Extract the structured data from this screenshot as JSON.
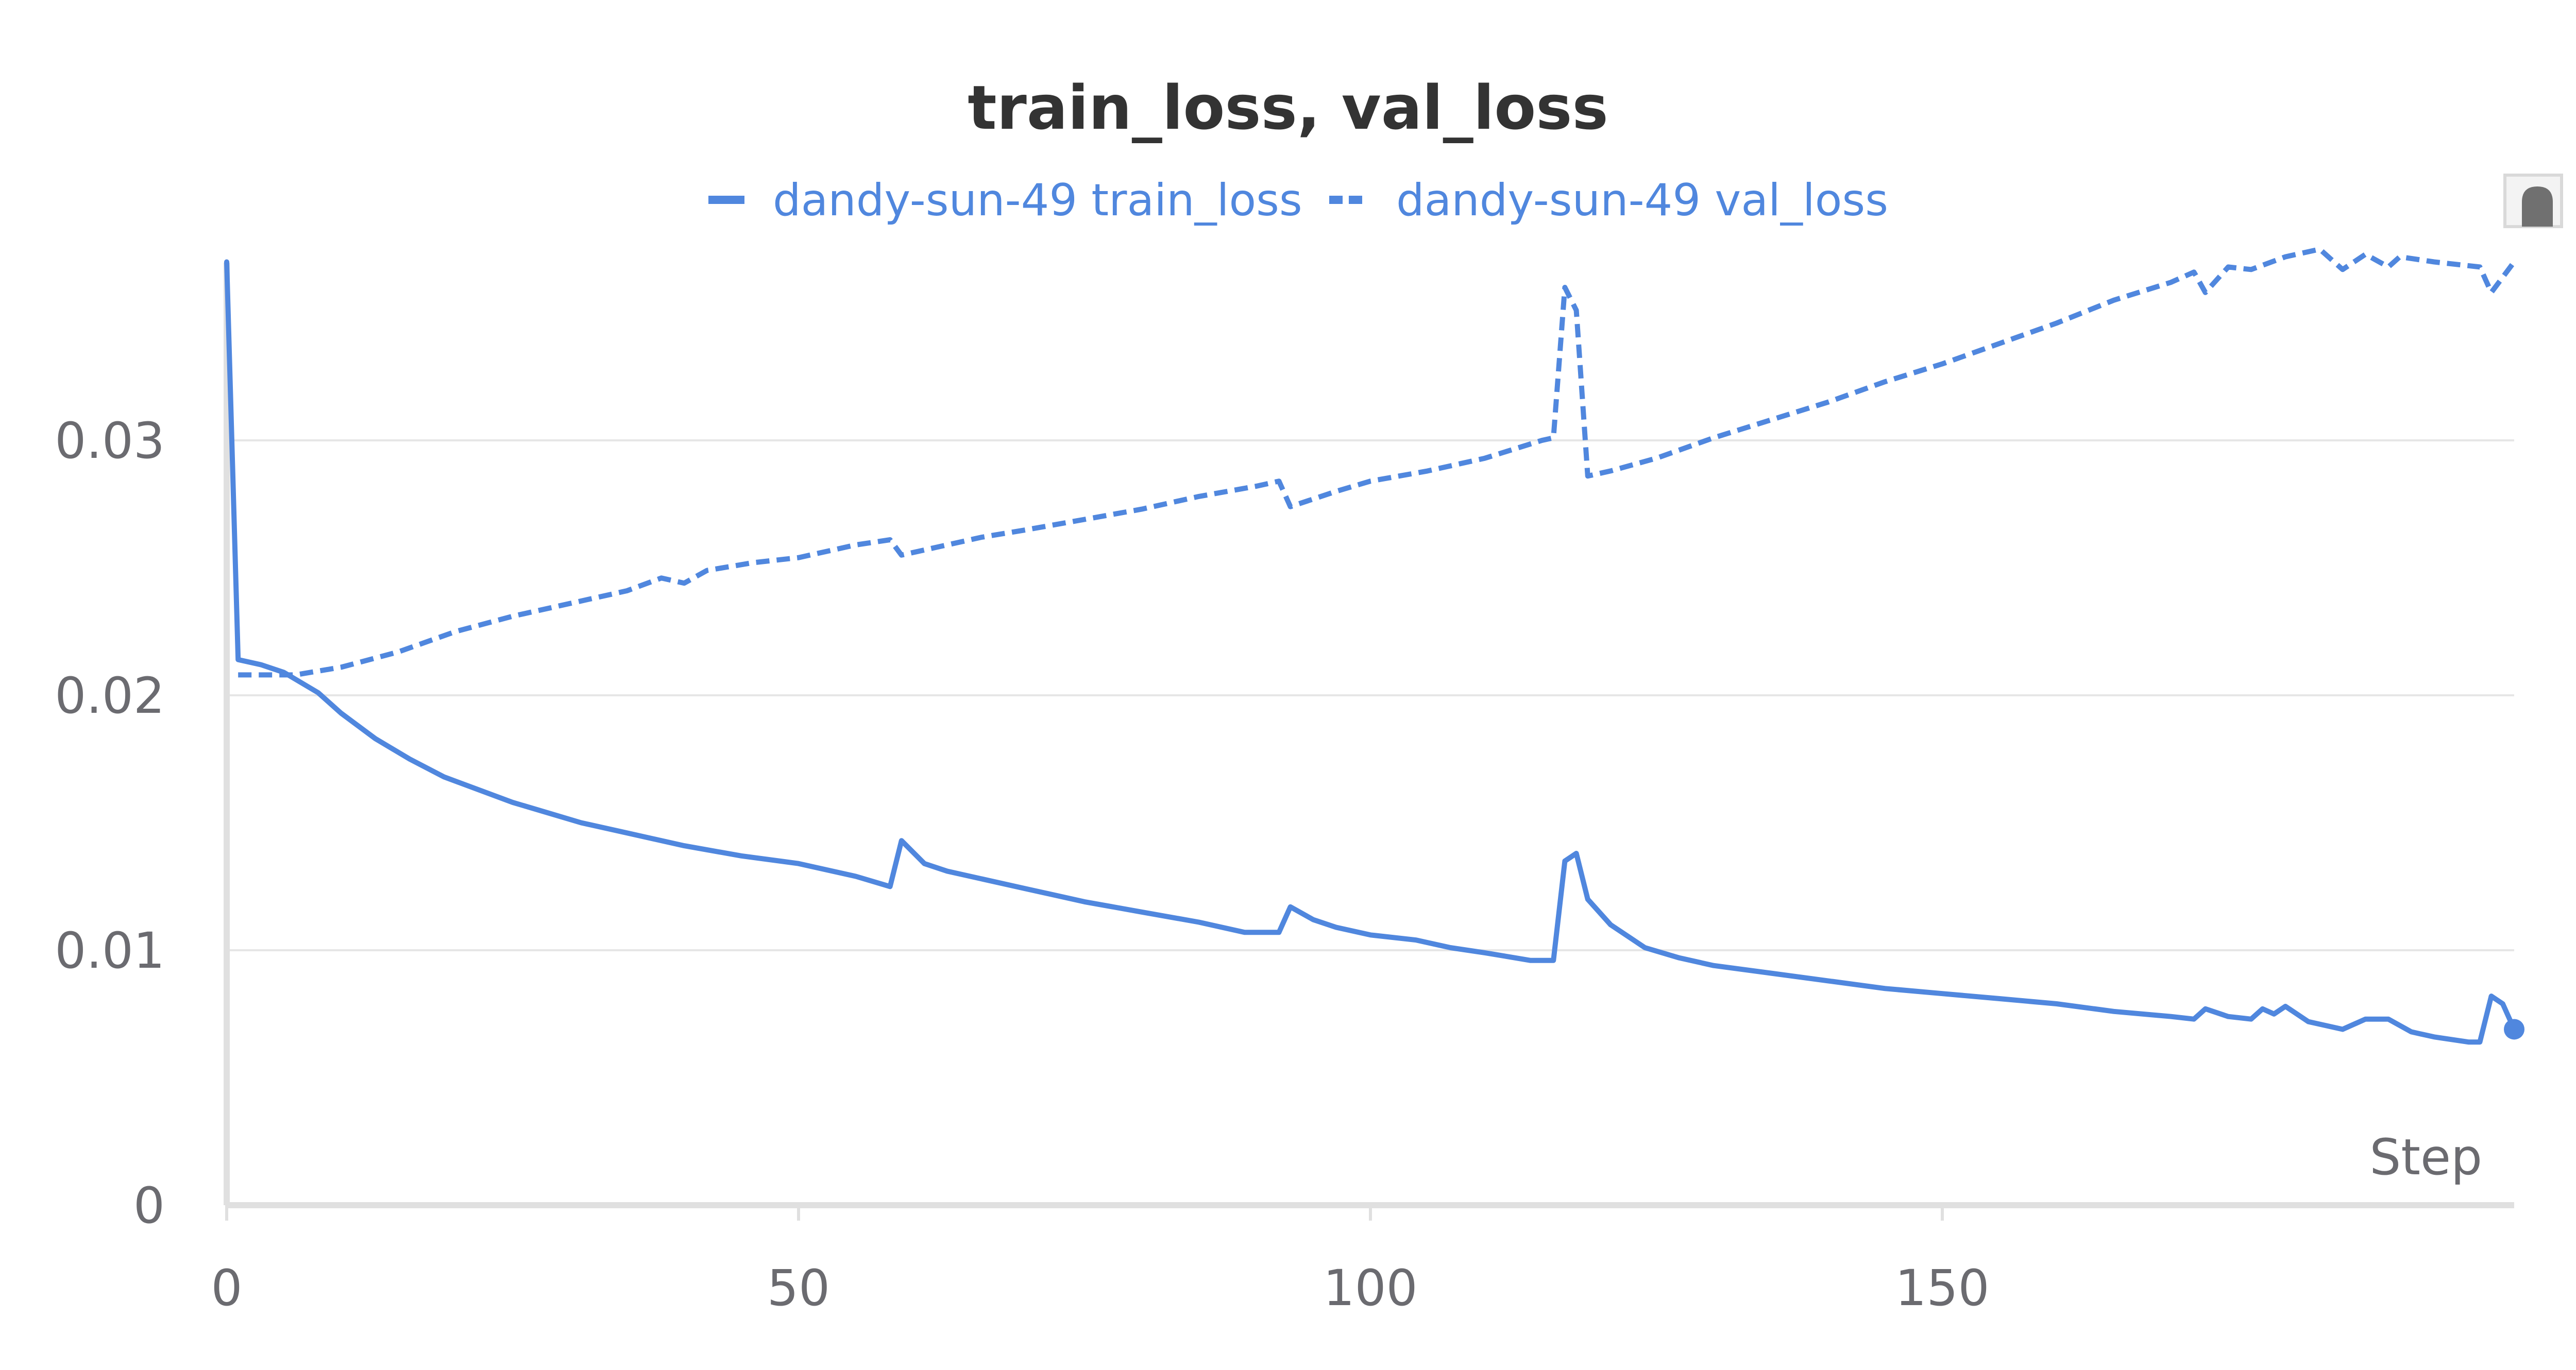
{
  "colors": {
    "series": "#5087de",
    "text": "#6b6b70",
    "title": "#333333",
    "grid": "#e6e6e6",
    "axis": "#e0e0e0",
    "background": "#ffffff"
  },
  "chart_data": {
    "type": "line",
    "title": "train_loss, val_loss",
    "xlabel": "Step",
    "ylabel": "",
    "xlim": [
      0,
      200
    ],
    "ylim": [
      0,
      0.037
    ],
    "x_ticks": [
      0,
      50,
      100,
      150
    ],
    "y_ticks": [
      0,
      0.01,
      0.02,
      0.03
    ],
    "x_tick_labels": [
      "0",
      "50",
      "100",
      "150"
    ],
    "y_tick_labels": [
      "0",
      "0.01",
      "0.02",
      "0.03"
    ],
    "grid": true,
    "legend_position": "top-center",
    "series": [
      {
        "name": "dandy-sun-49 train_loss",
        "style": "solid",
        "end_marker": true,
        "points": [
          [
            0,
            0.037
          ],
          [
            1,
            0.0214
          ],
          [
            3,
            0.0212
          ],
          [
            5,
            0.0209
          ],
          [
            8,
            0.0201
          ],
          [
            10,
            0.0193
          ],
          [
            13,
            0.0183
          ],
          [
            16,
            0.0175
          ],
          [
            19,
            0.0168
          ],
          [
            22,
            0.0163
          ],
          [
            25,
            0.0158
          ],
          [
            28,
            0.0154
          ],
          [
            31,
            0.015
          ],
          [
            35,
            0.0146
          ],
          [
            40,
            0.0141
          ],
          [
            45,
            0.0137
          ],
          [
            50,
            0.0134
          ],
          [
            55,
            0.0129
          ],
          [
            58,
            0.0125
          ],
          [
            59,
            0.0143
          ],
          [
            61,
            0.0134
          ],
          [
            63,
            0.0131
          ],
          [
            66,
            0.0128
          ],
          [
            70,
            0.0124
          ],
          [
            75,
            0.0119
          ],
          [
            80,
            0.0115
          ],
          [
            85,
            0.0111
          ],
          [
            89,
            0.0107
          ],
          [
            92,
            0.0107
          ],
          [
            93,
            0.0117
          ],
          [
            95,
            0.0112
          ],
          [
            97,
            0.0109
          ],
          [
            100,
            0.0106
          ],
          [
            104,
            0.0104
          ],
          [
            107,
            0.0101
          ],
          [
            110,
            0.0099
          ],
          [
            114,
            0.0096
          ],
          [
            116,
            0.0096
          ],
          [
            117,
            0.0135
          ],
          [
            118,
            0.0138
          ],
          [
            119,
            0.012
          ],
          [
            121,
            0.011
          ],
          [
            124,
            0.0101
          ],
          [
            127,
            0.0097
          ],
          [
            130,
            0.0094
          ],
          [
            135,
            0.0091
          ],
          [
            140,
            0.0088
          ],
          [
            145,
            0.0085
          ],
          [
            150,
            0.0083
          ],
          [
            155,
            0.0081
          ],
          [
            160,
            0.0079
          ],
          [
            165,
            0.0076
          ],
          [
            170,
            0.0074
          ],
          [
            172,
            0.0073
          ],
          [
            173,
            0.0077
          ],
          [
            175,
            0.0074
          ],
          [
            177,
            0.0073
          ],
          [
            178,
            0.0077
          ],
          [
            179,
            0.0075
          ],
          [
            180,
            0.0078
          ],
          [
            182,
            0.0072
          ],
          [
            185,
            0.0069
          ],
          [
            187,
            0.0073
          ],
          [
            189,
            0.0073
          ],
          [
            191,
            0.0068
          ],
          [
            193,
            0.0066
          ],
          [
            196,
            0.0064
          ],
          [
            197,
            0.0064
          ],
          [
            198,
            0.0082
          ],
          [
            199,
            0.0079
          ],
          [
            200,
            0.0069
          ]
        ]
      },
      {
        "name": "dandy-sun-49 val_loss",
        "style": "dashed",
        "end_marker": false,
        "points": [
          [
            1,
            0.0208
          ],
          [
            6,
            0.0208
          ],
          [
            10,
            0.0211
          ],
          [
            15,
            0.0217
          ],
          [
            20,
            0.0225
          ],
          [
            25,
            0.0231
          ],
          [
            30,
            0.0236
          ],
          [
            35,
            0.0241
          ],
          [
            38,
            0.0246
          ],
          [
            40,
            0.0244
          ],
          [
            42,
            0.0249
          ],
          [
            46,
            0.0252
          ],
          [
            50,
            0.0254
          ],
          [
            55,
            0.0259
          ],
          [
            58,
            0.0261
          ],
          [
            59,
            0.0255
          ],
          [
            62,
            0.0258
          ],
          [
            66,
            0.0262
          ],
          [
            70,
            0.0265
          ],
          [
            75,
            0.0269
          ],
          [
            80,
            0.0273
          ],
          [
            85,
            0.0278
          ],
          [
            90,
            0.0282
          ],
          [
            92,
            0.0284
          ],
          [
            93,
            0.0274
          ],
          [
            95,
            0.0277
          ],
          [
            97,
            0.028
          ],
          [
            100,
            0.0284
          ],
          [
            105,
            0.0288
          ],
          [
            110,
            0.0293
          ],
          [
            115,
            0.03
          ],
          [
            116,
            0.0301
          ],
          [
            117,
            0.036
          ],
          [
            118,
            0.0351
          ],
          [
            119,
            0.0286
          ],
          [
            121,
            0.0288
          ],
          [
            125,
            0.0293
          ],
          [
            130,
            0.0301
          ],
          [
            135,
            0.0308
          ],
          [
            140,
            0.0315
          ],
          [
            145,
            0.0323
          ],
          [
            150,
            0.033
          ],
          [
            155,
            0.0338
          ],
          [
            160,
            0.0346
          ],
          [
            165,
            0.0355
          ],
          [
            170,
            0.0362
          ],
          [
            172,
            0.0366
          ],
          [
            173,
            0.0358
          ],
          [
            175,
            0.0368
          ],
          [
            177,
            0.0367
          ],
          [
            180,
            0.0372
          ],
          [
            183,
            0.0375
          ],
          [
            185,
            0.0367
          ],
          [
            187,
            0.0373
          ],
          [
            189,
            0.0368
          ],
          [
            190,
            0.0372
          ],
          [
            193,
            0.037
          ],
          [
            197,
            0.0368
          ],
          [
            198,
            0.0358
          ],
          [
            200,
            0.037
          ]
        ]
      }
    ]
  }
}
